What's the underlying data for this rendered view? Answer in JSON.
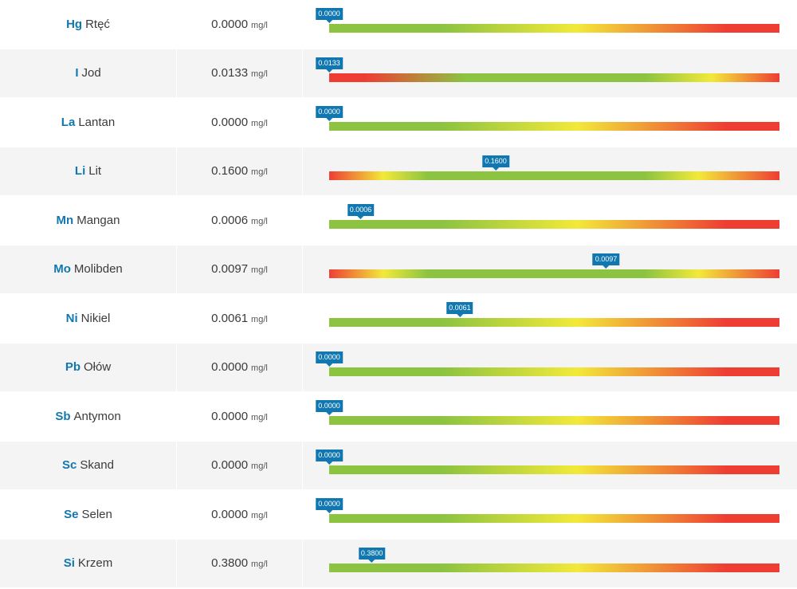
{
  "unit": "mg/l",
  "colors": {
    "green": "#8cc341",
    "yellow": "#f2e93a",
    "red": "#ee3e33",
    "marker": "#1177b0",
    "symbol": "#1177b0"
  },
  "rows": [
    {
      "symbol": "Hg",
      "name": "Rtęć",
      "value": "0.0000",
      "marker_pos": 0.0,
      "scale": "good-low"
    },
    {
      "symbol": "I",
      "name": "Jod",
      "value": "0.0133",
      "marker_pos": 0.0,
      "scale": "bad-low"
    },
    {
      "symbol": "La",
      "name": "Lantan",
      "value": "0.0000",
      "marker_pos": 0.0,
      "scale": "good-low"
    },
    {
      "symbol": "Li",
      "name": "Lit",
      "value": "0.1600",
      "marker_pos": 0.37,
      "scale": "optimal-mid"
    },
    {
      "symbol": "Mn",
      "name": "Mangan",
      "value": "0.0006",
      "marker_pos": 0.07,
      "scale": "good-low"
    },
    {
      "symbol": "Mo",
      "name": "Molibden",
      "value": "0.0097",
      "marker_pos": 0.615,
      "scale": "optimal-mid"
    },
    {
      "symbol": "Ni",
      "name": "Nikiel",
      "value": "0.0061",
      "marker_pos": 0.29,
      "scale": "good-low"
    },
    {
      "symbol": "Pb",
      "name": "Ołów",
      "value": "0.0000",
      "marker_pos": 0.0,
      "scale": "good-low"
    },
    {
      "symbol": "Sb",
      "name": "Antymon",
      "value": "0.0000",
      "marker_pos": 0.0,
      "scale": "good-low"
    },
    {
      "symbol": "Sc",
      "name": "Skand",
      "value": "0.0000",
      "marker_pos": 0.0,
      "scale": "good-low"
    },
    {
      "symbol": "Se",
      "name": "Selen",
      "value": "0.0000",
      "marker_pos": 0.0,
      "scale": "good-low"
    },
    {
      "symbol": "Si",
      "name": "Krzem",
      "value": "0.3800",
      "marker_pos": 0.095,
      "scale": "good-low"
    }
  ]
}
